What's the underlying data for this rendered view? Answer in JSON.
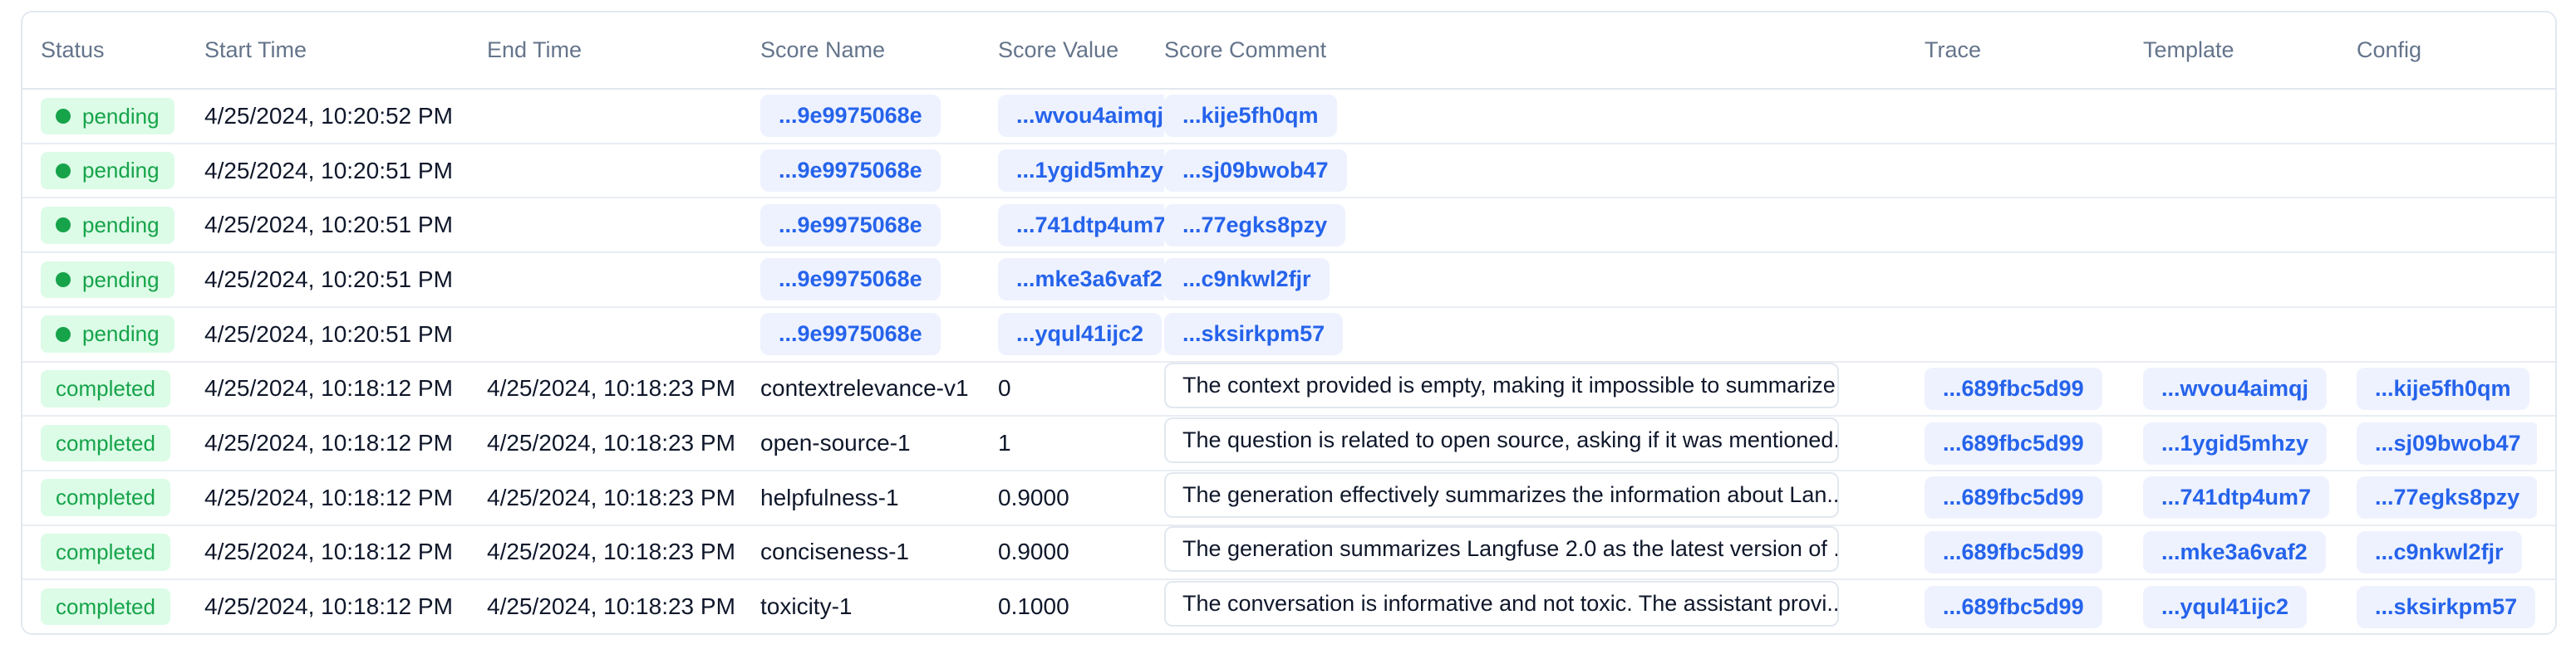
{
  "table": {
    "columns": [
      {
        "key": "status",
        "label": "Status"
      },
      {
        "key": "start_time",
        "label": "Start Time"
      },
      {
        "key": "end_time",
        "label": "End Time"
      },
      {
        "key": "score_name",
        "label": "Score Name"
      },
      {
        "key": "score_value",
        "label": "Score Value"
      },
      {
        "key": "score_comment",
        "label": "Score Comment"
      },
      {
        "key": "trace",
        "label": "Trace"
      },
      {
        "key": "template",
        "label": "Template"
      },
      {
        "key": "config",
        "label": "Config"
      }
    ],
    "rows": [
      {
        "status": "pending",
        "start_time": "4/25/2024, 10:20:52 PM",
        "end_time": "",
        "score_name": "",
        "score_value": "",
        "score_comment": "",
        "trace": "...9e9975068e",
        "template": "...wvou4aimqj",
        "config": "...kije5fh0qm"
      },
      {
        "status": "pending",
        "start_time": "4/25/2024, 10:20:51 PM",
        "end_time": "",
        "score_name": "",
        "score_value": "",
        "score_comment": "",
        "trace": "...9e9975068e",
        "template": "...1ygid5mhzy",
        "config": "...sj09bwob47"
      },
      {
        "status": "pending",
        "start_time": "4/25/2024, 10:20:51 PM",
        "end_time": "",
        "score_name": "",
        "score_value": "",
        "score_comment": "",
        "trace": "...9e9975068e",
        "template": "...741dtp4um7",
        "config": "...77egks8pzy"
      },
      {
        "status": "pending",
        "start_time": "4/25/2024, 10:20:51 PM",
        "end_time": "",
        "score_name": "",
        "score_value": "",
        "score_comment": "",
        "trace": "...9e9975068e",
        "template": "...mke3a6vaf2",
        "config": "...c9nkwl2fjr"
      },
      {
        "status": "pending",
        "start_time": "4/25/2024, 10:20:51 PM",
        "end_time": "",
        "score_name": "",
        "score_value": "",
        "score_comment": "",
        "trace": "...9e9975068e",
        "template": "...yqul41ijc2",
        "config": "...sksirkpm57"
      },
      {
        "status": "completed",
        "start_time": "4/25/2024, 10:18:12 PM",
        "end_time": "4/25/2024, 10:18:23 PM",
        "score_name": "contextrelevance-v1",
        "score_value": "0",
        "score_comment": "The context provided is empty, making it impossible to summarize.",
        "trace": "...689fbc5d99",
        "template": "...wvou4aimqj",
        "config": "...kije5fh0qm"
      },
      {
        "status": "completed",
        "start_time": "4/25/2024, 10:18:12 PM",
        "end_time": "4/25/2024, 10:18:23 PM",
        "score_name": "open-source-1",
        "score_value": "1",
        "score_comment": "The question is related to open source, asking if it was mentioned...",
        "trace": "...689fbc5d99",
        "template": "...1ygid5mhzy",
        "config": "...sj09bwob47"
      },
      {
        "status": "completed",
        "start_time": "4/25/2024, 10:18:12 PM",
        "end_time": "4/25/2024, 10:18:23 PM",
        "score_name": "helpfulness-1",
        "score_value": "0.9000",
        "score_comment": "The generation effectively summarizes the information about Lan...",
        "trace": "...689fbc5d99",
        "template": "...741dtp4um7",
        "config": "...77egks8pzy"
      },
      {
        "status": "completed",
        "start_time": "4/25/2024, 10:18:12 PM",
        "end_time": "4/25/2024, 10:18:23 PM",
        "score_name": "conciseness-1",
        "score_value": "0.9000",
        "score_comment": "The generation summarizes Langfuse 2.0 as the latest version of ...",
        "trace": "...689fbc5d99",
        "template": "...mke3a6vaf2",
        "config": "...c9nkwl2fjr"
      },
      {
        "status": "completed",
        "start_time": "4/25/2024, 10:18:12 PM",
        "end_time": "4/25/2024, 10:18:23 PM",
        "score_name": "toxicity-1",
        "score_value": "0.1000",
        "score_comment": "The conversation is informative and not toxic. The assistant provi...",
        "trace": "...689fbc5d99",
        "template": "...yqul41ijc2",
        "config": "...sksirkpm57"
      }
    ]
  },
  "colors": {
    "status_badge_bg": "#dcfce7",
    "status_badge_text": "#16a34a",
    "id_badge_bg": "#eef2ff",
    "id_badge_text": "#2563eb",
    "border": "#e2e8f0",
    "header_text": "#64748b",
    "body_text": "#0f172a"
  }
}
